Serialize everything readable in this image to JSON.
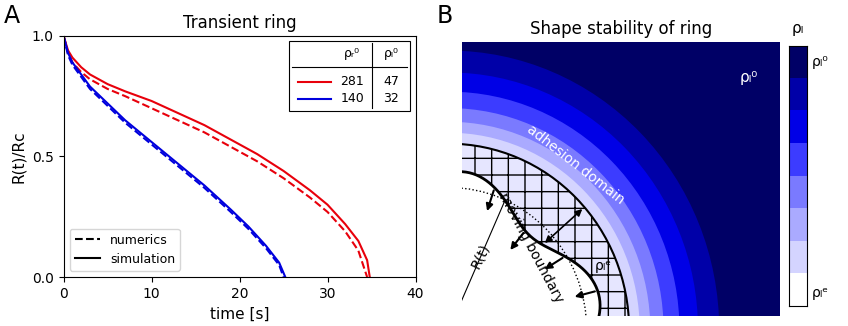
{
  "chart_data": {
    "type": "line",
    "panel_label": "A",
    "title": "Transient ring",
    "x_label": "time [s]",
    "y_label": "R(t)/Rc",
    "xlim": [
      0,
      40
    ],
    "xticks": [
      0,
      10,
      20,
      30,
      40
    ],
    "ylim": [
      0,
      1
    ],
    "yticks": [
      {
        "value": 0,
        "label": "0.0"
      },
      0.5,
      {
        "value": 1,
        "label": "1.0"
      }
    ],
    "legend": "lower left",
    "line_styles": [
      {
        "name": "numerics",
        "line_style": "dashed"
      },
      {
        "name": "simulation",
        "line_style": "solid"
      }
    ],
    "table": {
      "columns": [
        "ρᵣ⁰",
        "ρₗ⁰"
      ]
    },
    "groups": [
      {
        "color": "#e8000b",
        "rho_r0": 281,
        "rho_l0": 47,
        "series": [
          {
            "name": "numerics",
            "line_style": "dashed",
            "x": [
              0,
              0.5,
              1,
              2,
              3,
              5,
              7,
              10,
              13,
              16,
              19,
              22,
              25,
              28,
              30,
              32,
              33.5,
              34.5
            ],
            "values": [
              1.0,
              0.93,
              0.89,
              0.85,
              0.82,
              0.78,
              0.75,
              0.7,
              0.65,
              0.6,
              0.54,
              0.48,
              0.41,
              0.33,
              0.27,
              0.19,
              0.11,
              0.0
            ]
          },
          {
            "name": "simulation",
            "line_style": "solid",
            "x": [
              0,
              0.5,
              1,
              2,
              3,
              5,
              7,
              10,
              13,
              16,
              19,
              22,
              25,
              28,
              30,
              32,
              33.5,
              34.5,
              34.8
            ],
            "values": [
              1.0,
              0.94,
              0.91,
              0.87,
              0.84,
              0.8,
              0.77,
              0.73,
              0.68,
              0.63,
              0.57,
              0.51,
              0.44,
              0.36,
              0.3,
              0.22,
              0.15,
              0.07,
              0.0
            ]
          }
        ]
      },
      {
        "color": "#0000dd",
        "rho_r0": 140,
        "rho_l0": 32,
        "series": [
          {
            "name": "numerics",
            "line_style": "dashed",
            "x": [
              0,
              0.5,
              1,
              2,
              3,
              5,
              7,
              10,
              13,
              16,
              19,
              21,
              23,
              24.5,
              25.0
            ],
            "values": [
              1.0,
              0.92,
              0.88,
              0.83,
              0.78,
              0.71,
              0.64,
              0.55,
              0.46,
              0.37,
              0.27,
              0.2,
              0.12,
              0.05,
              0.0
            ]
          },
          {
            "name": "simulation",
            "line_style": "solid",
            "x": [
              0,
              0.5,
              1,
              2,
              3,
              5,
              7,
              10,
              13,
              16,
              19,
              21,
              23,
              24.5,
              25.2
            ],
            "values": [
              1.0,
              0.93,
              0.89,
              0.84,
              0.79,
              0.72,
              0.65,
              0.56,
              0.47,
              0.38,
              0.28,
              0.21,
              0.13,
              0.06,
              0.0
            ]
          }
        ]
      }
    ]
  },
  "diagram": {
    "panel_label": "B",
    "title": "Shape stability of ring",
    "labels": {
      "outer_density": "ρₗ⁰",
      "domain": "adhesion domain",
      "boundary": "moving boundary",
      "radius": "R(t)",
      "edge_density": "ρₗᵉ"
    },
    "colorbar": {
      "label": "ρₗ",
      "top": "ρₗ⁰",
      "bottom": "ρₗᵉ"
    }
  }
}
